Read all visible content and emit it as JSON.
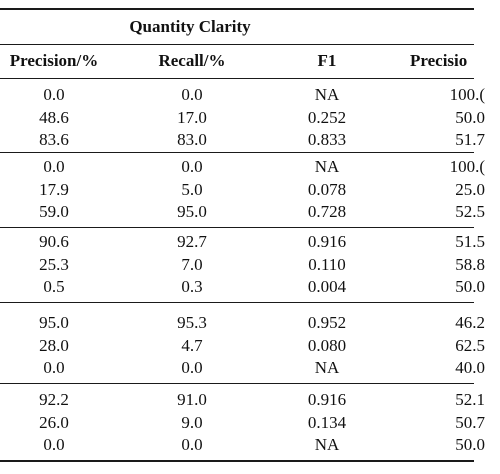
{
  "table": {
    "group_header": "Quantity Clarity",
    "columns": [
      "Precision/%",
      "Recall/%",
      "F1",
      "Precisio"
    ],
    "groups": [
      {
        "rows": [
          [
            "0.0",
            "0.0",
            "NA",
            "100.("
          ],
          [
            "48.6",
            "17.0",
            "0.252",
            "50.0"
          ],
          [
            "83.6",
            "83.0",
            "0.833",
            "51.7"
          ]
        ]
      },
      {
        "rows": [
          [
            "0.0",
            "0.0",
            "NA",
            "100.("
          ],
          [
            "17.9",
            "5.0",
            "0.078",
            "25.0"
          ],
          [
            "59.0",
            "95.0",
            "0.728",
            "52.5"
          ]
        ]
      },
      {
        "rows": [
          [
            "90.6",
            "92.7",
            "0.916",
            "51.5"
          ],
          [
            "25.3",
            "7.0",
            "0.110",
            "58.8"
          ],
          [
            "0.5",
            "0.3",
            "0.004",
            "50.0"
          ]
        ]
      },
      {
        "rows": [
          [
            "95.0",
            "95.3",
            "0.952",
            "46.2"
          ],
          [
            "28.0",
            "4.7",
            "0.080",
            "62.5"
          ],
          [
            "0.0",
            "0.0",
            "NA",
            "40.0"
          ]
        ]
      },
      {
        "rows": [
          [
            "92.2",
            "91.0",
            "0.916",
            "52.1"
          ],
          [
            "26.0",
            "9.0",
            "0.134",
            "50.7"
          ],
          [
            "0.0",
            "0.0",
            "NA",
            "50.0"
          ]
        ]
      }
    ]
  }
}
